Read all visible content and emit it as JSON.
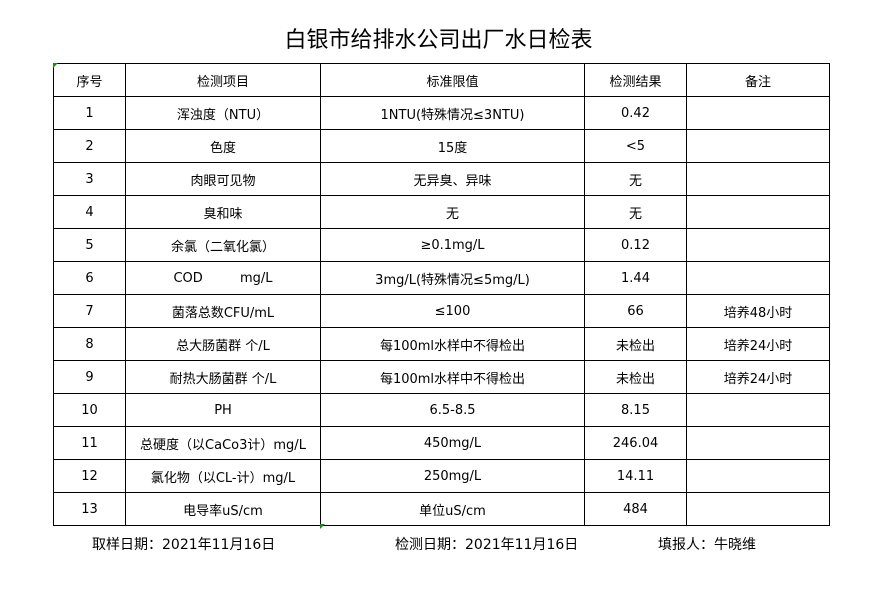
{
  "title": "白银市给排水公司出厂水日检表",
  "table": {
    "headers": [
      "序号",
      "检测项目",
      "标准限值",
      "检测结果",
      "备注"
    ],
    "rows": [
      [
        "1",
        "浑浊度（NTU）",
        "1NTU(特殊情况≤3NTU)",
        "0.42",
        ""
      ],
      [
        "2",
        "色度",
        "15度",
        "<5",
        ""
      ],
      [
        "3",
        "肉眼可见物",
        "无异臭、异味",
        "无",
        ""
      ],
      [
        "4",
        "臭和味",
        "无",
        "无",
        ""
      ],
      [
        "5",
        "余氯（二氧化氯）",
        "≥0.1mg/L",
        "0.12",
        ""
      ],
      [
        "6",
        "COD         mg/L",
        "3mg/L(特殊情况≤5mg/L)",
        "1.44",
        ""
      ],
      [
        "7",
        "菌落总数CFU/mL",
        "≤100",
        "66",
        "培养48小时"
      ],
      [
        "8",
        "总大肠菌群 个/L",
        "每100ml水样中不得检出",
        "未检出",
        "培养24小时"
      ],
      [
        "9",
        "耐热大肠菌群 个/L",
        "每100ml水样中不得检出",
        "未检出",
        "培养24小时"
      ],
      [
        "10",
        "PH",
        "6.5-8.5",
        "8.15",
        ""
      ],
      [
        "11",
        "总硬度（以CaCo3计）mg/L",
        "450mg/L",
        "246.04",
        ""
      ],
      [
        "12",
        "氯化物（以CL-计）mg/L",
        "250mg/L",
        "14.11",
        ""
      ],
      [
        "13",
        "电导率uS/cm",
        "单位uS/cm",
        "484",
        ""
      ]
    ]
  },
  "footer": {
    "sampling_date": "取样日期：2021年11月16日",
    "test_date": "检测日期：2021年11月16日",
    "reporter": "填报人：牛晓维"
  }
}
